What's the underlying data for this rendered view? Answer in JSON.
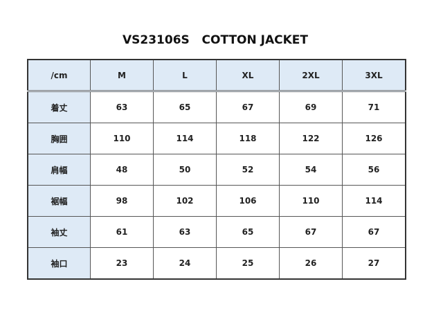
{
  "title": "VS23106S   COTTON JACKET",
  "table": {
    "headers": [
      "/cm",
      "M",
      "L",
      "XL",
      "2XL",
      "3XL"
    ],
    "rows": [
      {
        "label": "着丈",
        "values": [
          "63",
          "65",
          "67",
          "69",
          "71"
        ]
      },
      {
        "label": "胸囲",
        "values": [
          "110",
          "114",
          "118",
          "122",
          "126"
        ]
      },
      {
        "label": "肩幅",
        "values": [
          "48",
          "50",
          "52",
          "54",
          "56"
        ]
      },
      {
        "label": "裾幅",
        "values": [
          "98",
          "102",
          "106",
          "110",
          "114"
        ]
      },
      {
        "label": "袖丈",
        "values": [
          "61",
          "63",
          "65",
          "67",
          "67"
        ]
      },
      {
        "label": "袖口",
        "values": [
          "23",
          "24",
          "25",
          "26",
          "27"
        ]
      }
    ]
  }
}
